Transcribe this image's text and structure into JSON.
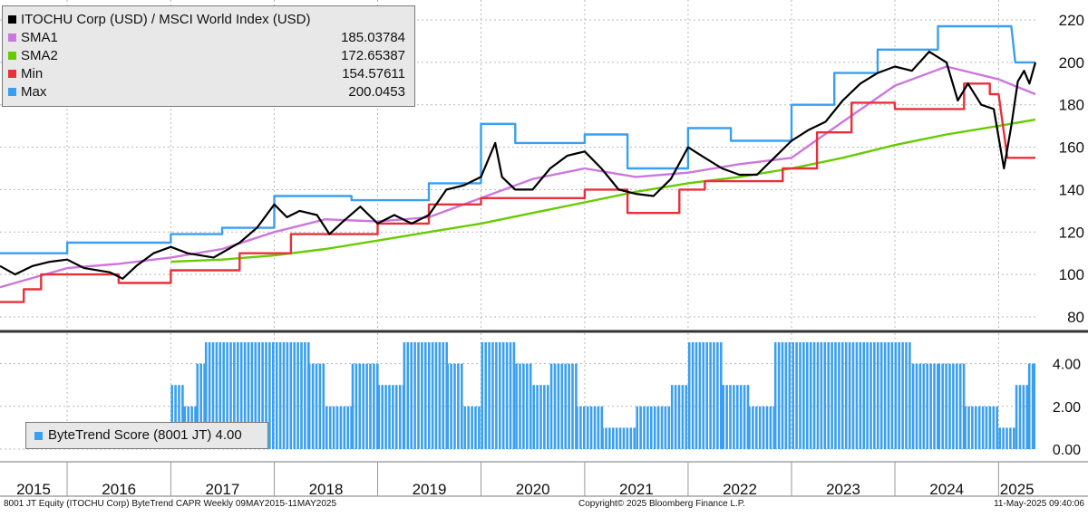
{
  "chart_data": [
    {
      "type": "line",
      "title": "ITOCHU Corp (USD) / MSCI World Index (USD)",
      "x_range": [
        "2015-05-09",
        "2025-05-11"
      ],
      "ylim": [
        80,
        220
      ],
      "y_ticks": [
        "80",
        "100",
        "120",
        "140",
        "160",
        "180",
        "200",
        "220"
      ],
      "grid": true,
      "legend_placement": "top-left",
      "series": [
        {
          "name": "ITOCHU Corp (USD) / MSCI World Index (USD)",
          "color": "#000000",
          "points": [
            [
              "2015-05-09",
              104
            ],
            [
              "2015-07-01",
              100
            ],
            [
              "2015-09-01",
              104
            ],
            [
              "2015-11-01",
              106
            ],
            [
              "2016-01-01",
              107
            ],
            [
              "2016-03-01",
              103
            ],
            [
              "2016-06-01",
              101
            ],
            [
              "2016-07-15",
              98
            ],
            [
              "2016-09-01",
              104
            ],
            [
              "2016-11-01",
              110
            ],
            [
              "2017-01-01",
              113
            ],
            [
              "2017-03-01",
              110
            ],
            [
              "2017-06-01",
              108
            ],
            [
              "2017-09-01",
              115
            ],
            [
              "2017-11-01",
              122
            ],
            [
              "2018-01-01",
              133
            ],
            [
              "2018-02-15",
              127
            ],
            [
              "2018-04-01",
              130
            ],
            [
              "2018-06-01",
              128
            ],
            [
              "2018-07-15",
              119
            ],
            [
              "2018-09-01",
              125
            ],
            [
              "2018-11-01",
              132
            ],
            [
              "2019-01-01",
              124
            ],
            [
              "2019-03-01",
              128
            ],
            [
              "2019-05-01",
              124
            ],
            [
              "2019-07-01",
              128
            ],
            [
              "2019-09-01",
              140
            ],
            [
              "2019-11-01",
              142
            ],
            [
              "2020-01-01",
              146
            ],
            [
              "2020-02-20",
              162
            ],
            [
              "2020-03-15",
              146
            ],
            [
              "2020-05-01",
              140
            ],
            [
              "2020-07-01",
              140
            ],
            [
              "2020-09-01",
              150
            ],
            [
              "2020-11-01",
              156
            ],
            [
              "2021-01-01",
              158
            ],
            [
              "2021-03-01",
              150
            ],
            [
              "2021-05-01",
              140
            ],
            [
              "2021-07-01",
              138
            ],
            [
              "2021-09-01",
              137
            ],
            [
              "2021-11-01",
              145
            ],
            [
              "2022-01-01",
              160
            ],
            [
              "2022-03-01",
              155
            ],
            [
              "2022-05-01",
              150
            ],
            [
              "2022-07-01",
              147
            ],
            [
              "2022-09-01",
              147
            ],
            [
              "2022-11-01",
              155
            ],
            [
              "2023-01-01",
              163
            ],
            [
              "2023-03-01",
              168
            ],
            [
              "2023-05-01",
              172
            ],
            [
              "2023-07-01",
              182
            ],
            [
              "2023-09-01",
              190
            ],
            [
              "2023-11-01",
              195
            ],
            [
              "2024-01-01",
              198
            ],
            [
              "2024-03-01",
              196
            ],
            [
              "2024-05-01",
              205
            ],
            [
              "2024-07-01",
              200
            ],
            [
              "2024-08-10",
              182
            ],
            [
              "2024-09-15",
              190
            ],
            [
              "2024-11-01",
              180
            ],
            [
              "2024-12-15",
              178
            ],
            [
              "2025-01-20",
              150
            ],
            [
              "2025-02-15",
              170
            ],
            [
              "2025-03-10",
              191
            ],
            [
              "2025-04-01",
              196
            ],
            [
              "2025-04-20",
              190
            ],
            [
              "2025-05-11",
              200
            ]
          ]
        },
        {
          "name": "SMA1",
          "color": "#cc77dd",
          "value_label": "185.03784",
          "points": [
            [
              "2015-05-09",
              94
            ],
            [
              "2016-01-01",
              103
            ],
            [
              "2016-07-01",
              105
            ],
            [
              "2017-01-01",
              108
            ],
            [
              "2017-07-01",
              112
            ],
            [
              "2018-01-01",
              120
            ],
            [
              "2018-07-01",
              126
            ],
            [
              "2019-01-01",
              125
            ],
            [
              "2019-07-01",
              127
            ],
            [
              "2020-01-01",
              136
            ],
            [
              "2020-07-01",
              145
            ],
            [
              "2021-01-01",
              150
            ],
            [
              "2021-07-01",
              146
            ],
            [
              "2022-01-01",
              148
            ],
            [
              "2022-07-01",
              152
            ],
            [
              "2023-01-01",
              155
            ],
            [
              "2023-07-01",
              172
            ],
            [
              "2024-01-01",
              189
            ],
            [
              "2024-07-01",
              198
            ],
            [
              "2025-01-01",
              192
            ],
            [
              "2025-05-11",
              185
            ]
          ]
        },
        {
          "name": "SMA2",
          "color": "#66cc00",
          "value_label": "172.65387",
          "points": [
            [
              "2017-01-01",
              106
            ],
            [
              "2017-07-01",
              107
            ],
            [
              "2018-01-01",
              109
            ],
            [
              "2018-07-01",
              112
            ],
            [
              "2019-01-01",
              116
            ],
            [
              "2019-07-01",
              120
            ],
            [
              "2020-01-01",
              124
            ],
            [
              "2020-07-01",
              129
            ],
            [
              "2021-01-01",
              134
            ],
            [
              "2021-07-01",
              139
            ],
            [
              "2022-01-01",
              143
            ],
            [
              "2022-07-01",
              146
            ],
            [
              "2023-01-01",
              150
            ],
            [
              "2023-07-01",
              155
            ],
            [
              "2024-01-01",
              161
            ],
            [
              "2024-07-01",
              166
            ],
            [
              "2025-01-01",
              170
            ],
            [
              "2025-05-11",
              173
            ]
          ]
        },
        {
          "name": "Min",
          "color": "#e8303a",
          "value_label": "154.57611",
          "points": [
            [
              "2015-05-09",
              87
            ],
            [
              "2015-08-01",
              87
            ],
            [
              "2015-08-01",
              93
            ],
            [
              "2015-10-01",
              93
            ],
            [
              "2015-10-01",
              100
            ],
            [
              "2016-07-01",
              100
            ],
            [
              "2016-07-01",
              96
            ],
            [
              "2017-01-01",
              96
            ],
            [
              "2017-01-01",
              102
            ],
            [
              "2017-09-01",
              102
            ],
            [
              "2017-09-01",
              110
            ],
            [
              "2018-03-01",
              110
            ],
            [
              "2018-03-01",
              119
            ],
            [
              "2019-01-01",
              119
            ],
            [
              "2019-01-01",
              124
            ],
            [
              "2019-07-01",
              124
            ],
            [
              "2019-07-01",
              133
            ],
            [
              "2020-01-01",
              133
            ],
            [
              "2020-01-01",
              136
            ],
            [
              "2021-01-01",
              136
            ],
            [
              "2021-01-01",
              140
            ],
            [
              "2021-06-01",
              140
            ],
            [
              "2021-06-01",
              129
            ],
            [
              "2021-12-01",
              129
            ],
            [
              "2021-12-01",
              140
            ],
            [
              "2022-03-01",
              140
            ],
            [
              "2022-03-01",
              144
            ],
            [
              "2022-12-01",
              144
            ],
            [
              "2022-12-01",
              150
            ],
            [
              "2023-04-01",
              150
            ],
            [
              "2023-04-01",
              167
            ],
            [
              "2023-08-01",
              167
            ],
            [
              "2023-08-01",
              181
            ],
            [
              "2024-01-01",
              181
            ],
            [
              "2024-01-01",
              178
            ],
            [
              "2024-09-01",
              178
            ],
            [
              "2024-09-01",
              190
            ],
            [
              "2024-12-01",
              190
            ],
            [
              "2024-12-01",
              185
            ],
            [
              "2025-01-01",
              185
            ],
            [
              "2025-02-01",
              155
            ],
            [
              "2025-05-11",
              155
            ]
          ]
        },
        {
          "name": "Max",
          "color": "#3a9ff0",
          "value_label": "200.0453",
          "points": [
            [
              "2015-05-09",
              110
            ],
            [
              "2016-01-01",
              110
            ],
            [
              "2016-01-01",
              115
            ],
            [
              "2017-01-01",
              115
            ],
            [
              "2017-01-01",
              119
            ],
            [
              "2017-07-01",
              119
            ],
            [
              "2017-07-01",
              122
            ],
            [
              "2018-01-01",
              122
            ],
            [
              "2018-01-01",
              137
            ],
            [
              "2018-10-01",
              137
            ],
            [
              "2018-10-01",
              135
            ],
            [
              "2019-07-01",
              135
            ],
            [
              "2019-07-01",
              143
            ],
            [
              "2020-01-01",
              143
            ],
            [
              "2020-01-01",
              171
            ],
            [
              "2020-05-01",
              171
            ],
            [
              "2020-05-01",
              162
            ],
            [
              "2021-01-01",
              162
            ],
            [
              "2021-01-01",
              166
            ],
            [
              "2021-06-01",
              166
            ],
            [
              "2021-06-01",
              150
            ],
            [
              "2022-01-01",
              150
            ],
            [
              "2022-01-01",
              169
            ],
            [
              "2022-06-01",
              169
            ],
            [
              "2022-06-01",
              163
            ],
            [
              "2023-01-01",
              163
            ],
            [
              "2023-01-01",
              180
            ],
            [
              "2023-06-01",
              180
            ],
            [
              "2023-06-01",
              195
            ],
            [
              "2023-11-01",
              195
            ],
            [
              "2023-11-01",
              206
            ],
            [
              "2024-06-01",
              206
            ],
            [
              "2024-06-01",
              217
            ],
            [
              "2025-02-15",
              217
            ],
            [
              "2025-03-01",
              200
            ],
            [
              "2025-05-11",
              200
            ]
          ]
        }
      ]
    },
    {
      "type": "bar",
      "title": "ByteTrend Score (8001 JT) 4.00",
      "series_name": "ByteTrend Score (8001 JT)",
      "current_value": "4.00",
      "color": "#3a9ff0",
      "ylim": [
        0,
        5
      ],
      "y_ticks": [
        "0.00",
        "2.00",
        "4.00"
      ],
      "x_range": [
        "2015-05-09",
        "2025-05-11"
      ],
      "segments": [
        [
          "2015-05-09",
          0
        ],
        [
          "2017-01-01",
          3
        ],
        [
          "2017-02-15",
          2
        ],
        [
          "2017-04-01",
          4
        ],
        [
          "2017-05-01",
          5
        ],
        [
          "2018-05-01",
          4
        ],
        [
          "2018-07-01",
          2
        ],
        [
          "2018-10-01",
          4
        ],
        [
          "2019-01-01",
          3
        ],
        [
          "2019-04-01",
          5
        ],
        [
          "2019-09-01",
          4
        ],
        [
          "2019-11-01",
          2
        ],
        [
          "2020-01-01",
          5
        ],
        [
          "2020-05-01",
          4
        ],
        [
          "2020-07-01",
          3
        ],
        [
          "2020-09-01",
          4
        ],
        [
          "2020-12-01",
          2
        ],
        [
          "2021-03-01",
          1
        ],
        [
          "2021-07-01",
          2
        ],
        [
          "2021-11-01",
          3
        ],
        [
          "2022-01-01",
          5
        ],
        [
          "2022-05-01",
          3
        ],
        [
          "2022-08-01",
          2
        ],
        [
          "2022-11-01",
          5
        ],
        [
          "2024-03-01",
          4
        ],
        [
          "2024-06-01",
          4
        ],
        [
          "2024-09-01",
          2
        ],
        [
          "2025-01-01",
          1
        ],
        [
          "2025-03-01",
          3
        ],
        [
          "2025-04-15",
          4
        ],
        [
          "2025-05-11",
          4
        ]
      ]
    }
  ],
  "legend": [
    {
      "label": "ITOCHU Corp (USD) / MSCI World Index (USD)",
      "value": "",
      "color": "#000000"
    },
    {
      "label": "SMA1",
      "value": "185.03784",
      "color": "#cc77dd"
    },
    {
      "label": "SMA2",
      "value": "172.65387",
      "color": "#66cc00"
    },
    {
      "label": "Min",
      "value": "154.57611",
      "color": "#e8303a"
    },
    {
      "label": "Max",
      "value": "200.0453",
      "color": "#3a9ff0"
    }
  ],
  "score_legend": {
    "label": "ByteTrend Score (8001 JT) 4.00",
    "color": "#3a9ff0"
  },
  "x_axis": {
    "years": [
      "2015",
      "2016",
      "2017",
      "2018",
      "2019",
      "2020",
      "2021",
      "2022",
      "2023",
      "2024",
      "2025"
    ]
  },
  "footer": {
    "left": "8001 JT Equity (ITOCHU Corp) ByteTrend CAPR  Weekly 09MAY2015-11MAY2025",
    "center": "Copyright© 2025 Bloomberg Finance L.P.",
    "right": "11-May-2025 09:40:06"
  }
}
